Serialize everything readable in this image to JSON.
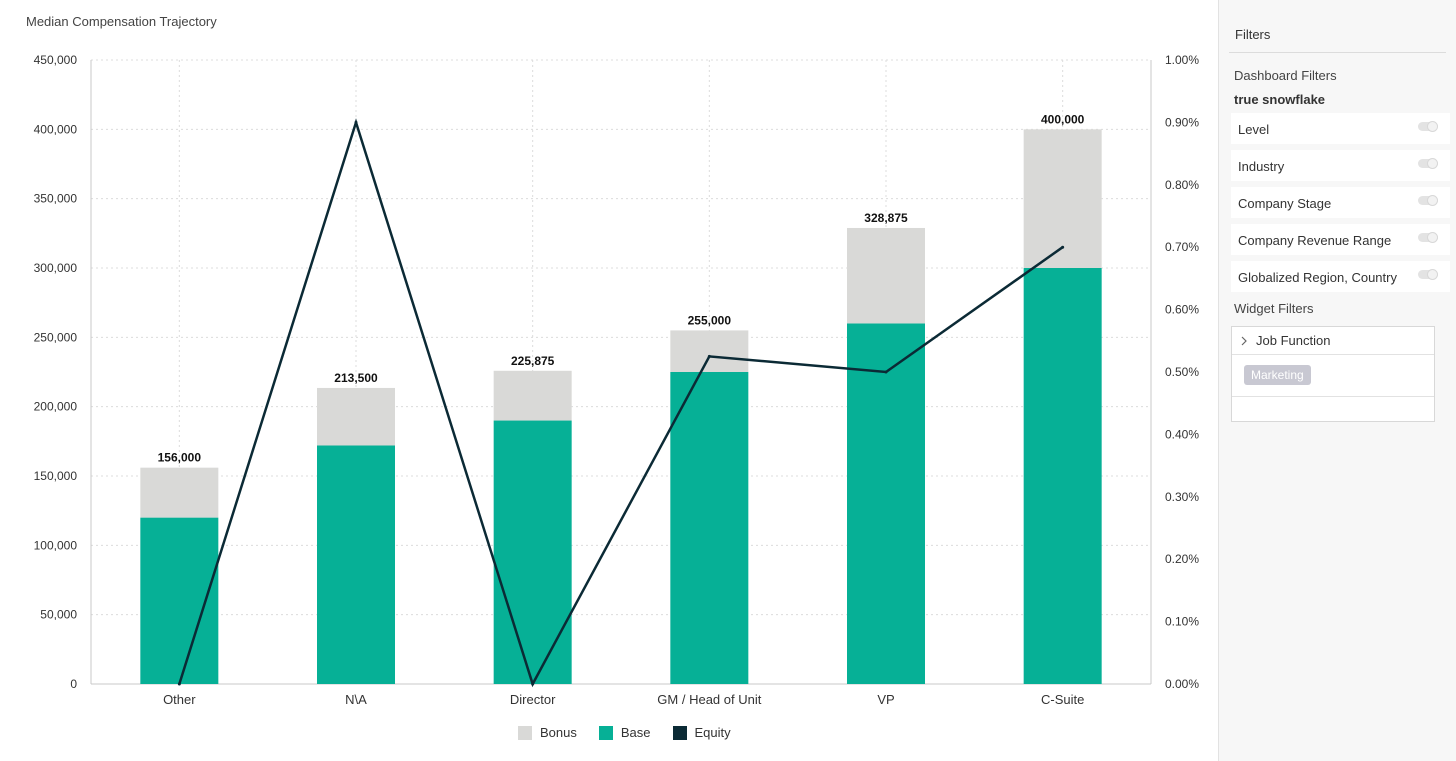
{
  "chart_data": {
    "type": "bar",
    "title": "Median Compensation Trajectory",
    "categories": [
      "Other",
      "N\\A",
      "Director",
      "GM / Head of Unit",
      "VP",
      "C-Suite"
    ],
    "stacked": true,
    "series": [
      {
        "name": "Base",
        "type": "bar",
        "axis": "left",
        "color": "#06b096",
        "values": [
          120000,
          172000,
          190000,
          225000,
          260000,
          300000
        ]
      },
      {
        "name": "Bonus",
        "type": "bar",
        "axis": "left",
        "color": "#d9d9d7",
        "values": [
          36000,
          41500,
          35875,
          30000,
          68875,
          100000
        ]
      },
      {
        "name": "Equity",
        "type": "line",
        "axis": "right",
        "color": "#0b2a35",
        "values": [
          0.0,
          0.009,
          0.0,
          0.00525,
          0.005,
          0.007
        ]
      }
    ],
    "totals_labels": [
      "156,000",
      "213,500",
      "225,875",
      "255,000",
      "328,875",
      "400,000"
    ],
    "y_left": {
      "min": 0,
      "max": 450000,
      "step": 50000,
      "tick_labels": [
        "0",
        "50,000",
        "100,000",
        "150,000",
        "200,000",
        "250,000",
        "300,000",
        "350,000",
        "400,000",
        "450,000"
      ]
    },
    "y_right": {
      "min": 0,
      "max": 0.01,
      "step": 0.001,
      "tick_labels": [
        "0.00%",
        "0.10%",
        "0.20%",
        "0.30%",
        "0.40%",
        "0.50%",
        "0.60%",
        "0.70%",
        "0.80%",
        "0.90%",
        "1.00%"
      ]
    },
    "grid": true,
    "legend": {
      "position": "bottom",
      "items": [
        "Bonus",
        "Base",
        "Equity"
      ]
    }
  },
  "filters": {
    "title": "Filters",
    "dashboard_label": "Dashboard Filters",
    "group_name": "true snowflake",
    "items": [
      "Level",
      "Industry",
      "Company Stage",
      "Company Revenue Range",
      "Globalized Region, Country"
    ],
    "widget_label": "Widget Filters",
    "job_function_label": "Job Function",
    "selected_value": "Marketing"
  },
  "icons": {
    "expand": "chevron-right-icon"
  }
}
